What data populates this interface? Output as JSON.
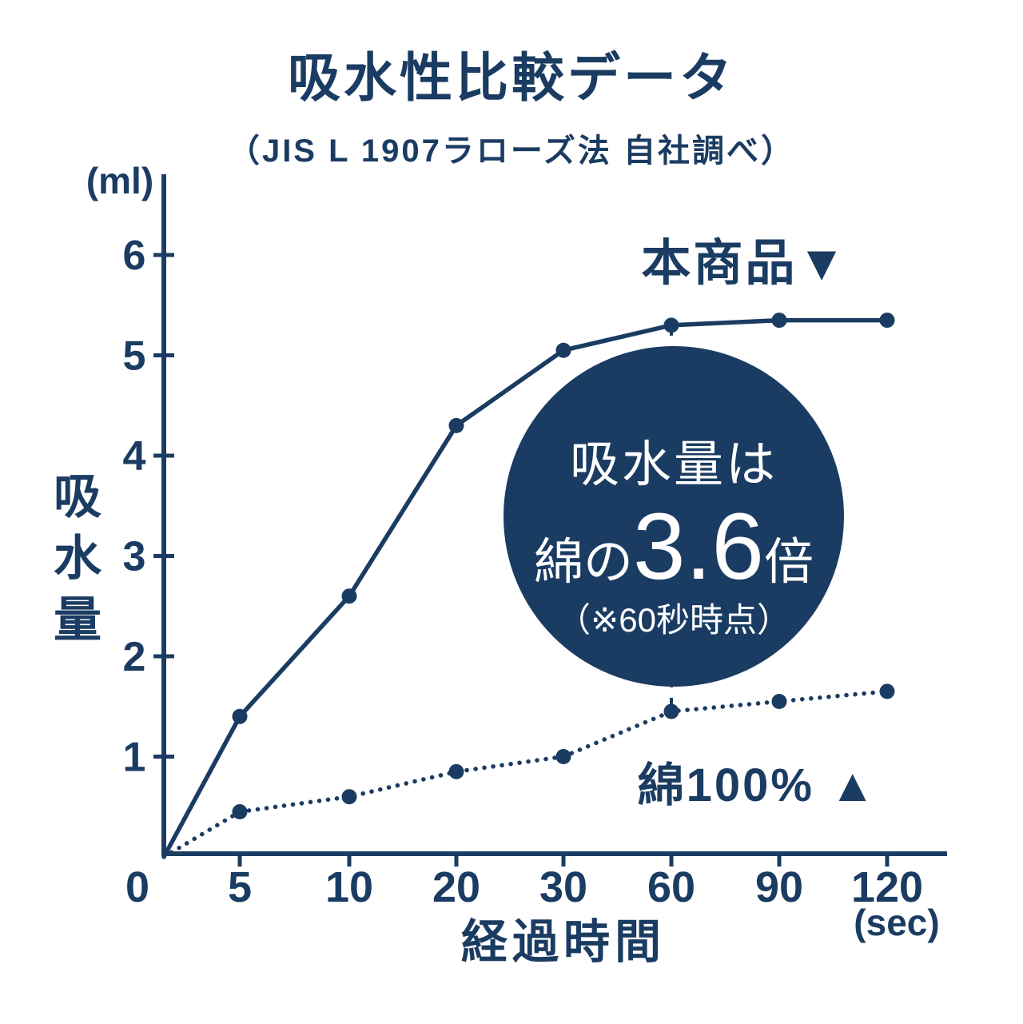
{
  "title": "吸水性比較データ",
  "subtitle": "（JIS L 1907ラローズ法 自社調べ）",
  "chart_data": {
    "type": "line",
    "title": "吸水性比較データ",
    "subtitle": "（JIS L 1907ラローズ法 自社調べ）",
    "xlabel": "経過時間",
    "x_unit": "(sec)",
    "ylabel": "吸水量",
    "y_unit": "(ml)",
    "categories": [
      "0",
      "5",
      "10",
      "20",
      "30",
      "60",
      "90",
      "120"
    ],
    "y_ticks": [
      1,
      2,
      3,
      4,
      5,
      6
    ],
    "ylim": [
      0,
      6.5
    ],
    "grid": false,
    "legend_position": "inline-annotations",
    "series": [
      {
        "name": "本商品",
        "label": "本商品▼",
        "style": "solid",
        "values": [
          0,
          1.4,
          2.6,
          4.3,
          5.05,
          5.3,
          5.35,
          5.35
        ]
      },
      {
        "name": "綿100%",
        "label": "綿100% ▲",
        "style": "dotted",
        "values": [
          0,
          0.45,
          0.6,
          0.85,
          1.0,
          1.45,
          1.55,
          1.65
        ]
      }
    ],
    "annotation": {
      "line1": "吸水量は",
      "line2_prefix": "綿の",
      "line2_big": "3.6",
      "line2_suffix": "倍",
      "line3": "（※60秒時点）",
      "at_category": "60"
    },
    "colors": {
      "navy": "#1b3c62",
      "white": "#ffffff"
    }
  }
}
